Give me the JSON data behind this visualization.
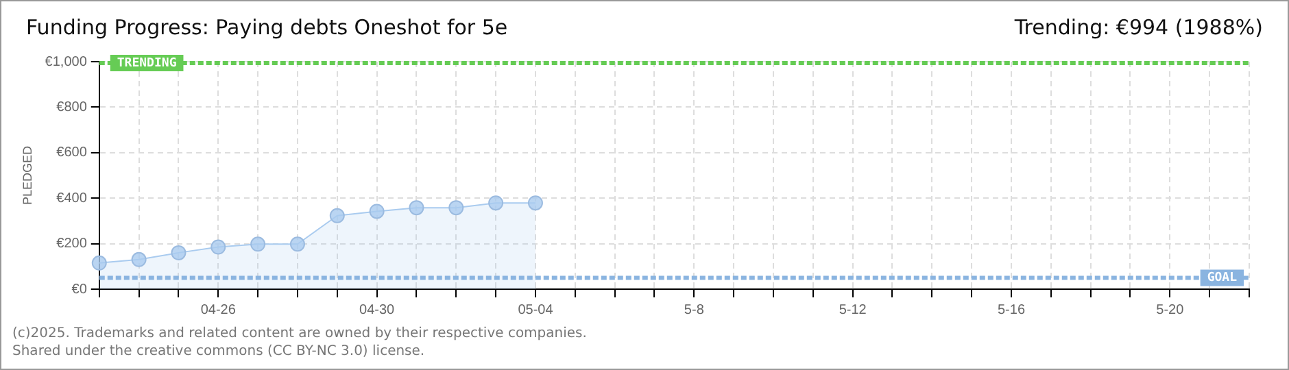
{
  "chart_data": {
    "type": "area",
    "title": "Funding Progress: Paying debts Oneshot for 5e",
    "subtitle": "Trending: €994 (1988%)",
    "ylabel": "PLEDGED",
    "categories": [
      null,
      null,
      null,
      "04-26",
      null,
      null,
      null,
      "04-30",
      null,
      null,
      null,
      "05-04",
      null,
      null,
      null,
      "5-8",
      null,
      null,
      null,
      "5-12",
      null,
      null,
      null,
      "5-16",
      null,
      null,
      null,
      "5-20",
      null,
      null
    ],
    "series": [
      {
        "color": "#a9cbef",
        "values": [
          115,
          130,
          160,
          185,
          198,
          198,
          323,
          342,
          358,
          358,
          379,
          379,
          null,
          null,
          null,
          null,
          null,
          null,
          null,
          null,
          null,
          null,
          null,
          null,
          null,
          null,
          null,
          null,
          null,
          null
        ]
      }
    ],
    "ylim": [
      0,
      1000
    ],
    "yticks": [
      {
        "value": 0,
        "label": "€0"
      },
      {
        "value": 200,
        "label": "€200"
      },
      {
        "value": 400,
        "label": "€400"
      },
      {
        "value": 600,
        "label": "€600"
      },
      {
        "value": 800,
        "label": "€800"
      },
      {
        "value": 1000,
        "label": "€1,000"
      }
    ],
    "grid": true,
    "marker": "circle",
    "legend": false,
    "ref_lines": [
      {
        "axis": "y",
        "value": 994,
        "label": "TRENDING",
        "color": "#66cc55",
        "line_style": "dashed"
      },
      {
        "axis": "y",
        "value": 50,
        "label": "GOAL",
        "color": "#8ab4e0",
        "line_style": "dashed"
      }
    ],
    "annotations": [
      "(c)2025. Trademarks and related content are owned by their respective companies.",
      "Shared under the creative commons (CC BY-NC 3.0) license."
    ]
  }
}
